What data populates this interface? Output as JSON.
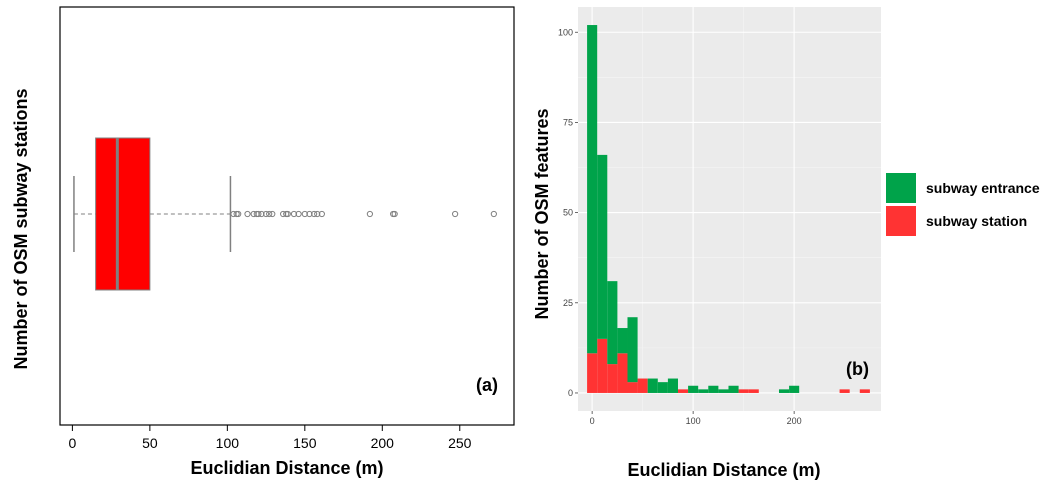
{
  "chart_data": [
    {
      "type": "boxplot",
      "panel_label": "(a)",
      "xlabel": "Euclidian Distance (m)",
      "ylabel": "Number of OSM subway stations",
      "xlim": [
        -8,
        285
      ],
      "xticks": [
        0,
        50,
        100,
        150,
        200,
        250
      ],
      "box": {
        "whisker_low": 1,
        "q1": 15,
        "median": 29,
        "q3": 50,
        "whisker_high": 102,
        "fill": "#ff0000",
        "median_color": "#808080"
      },
      "outliers": [
        104,
        106,
        107,
        113,
        117,
        119,
        120,
        122,
        125,
        127,
        129,
        136,
        138,
        139,
        143,
        146,
        150,
        153,
        156,
        158,
        161,
        192,
        207,
        208,
        247,
        272
      ]
    },
    {
      "type": "histogram",
      "panel_label": "(b)",
      "xlabel": "Euclidian Distance (m)",
      "ylabel": "Number of OSM  features",
      "xlim": [
        -14,
        286
      ],
      "ylim": [
        -5,
        107
      ],
      "xticks": [
        0,
        100,
        200
      ],
      "yticks": [
        0,
        25,
        50,
        75,
        100
      ],
      "bin_width": 10,
      "bin_starts": [
        -5,
        5,
        15,
        25,
        35,
        45,
        55,
        65,
        75,
        85,
        95,
        105,
        115,
        125,
        135,
        145,
        155,
        165,
        175,
        185,
        195,
        205,
        215,
        225,
        235,
        245,
        255,
        265
      ],
      "stacked": true,
      "series": [
        {
          "name": "subway station",
          "color": "#ff3333",
          "values": [
            11,
            15,
            8,
            11,
            3,
            4,
            0,
            0,
            0,
            1,
            0,
            0,
            0,
            0,
            0,
            1,
            1,
            0,
            0,
            0,
            0,
            0,
            0,
            0,
            0,
            1,
            0,
            1
          ]
        },
        {
          "name": "subway entrance",
          "color": "#00a34a",
          "values": [
            91,
            51,
            23,
            7,
            18,
            0,
            4,
            3,
            4,
            0,
            2,
            1,
            2,
            1,
            2,
            0,
            0,
            0,
            0,
            1,
            2,
            0,
            0,
            0,
            0,
            0,
            0,
            0
          ]
        }
      ],
      "legend": {
        "position": "right",
        "entries": [
          {
            "label": "subway entrance",
            "color": "#00a34a"
          },
          {
            "label": "subway station",
            "color": "#ff3333"
          }
        ]
      },
      "panel_background": "#ebebeb",
      "grid": true
    }
  ]
}
